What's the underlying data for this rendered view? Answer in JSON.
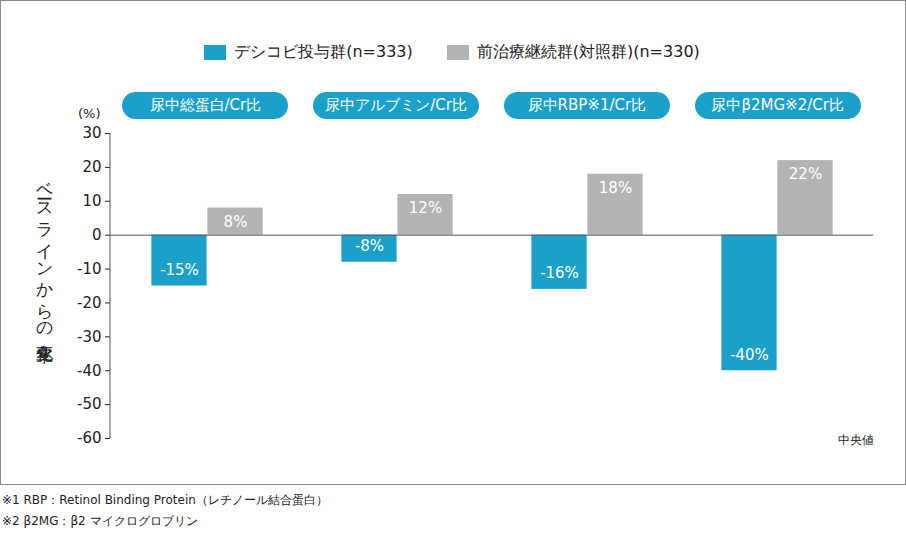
{
  "chart_data": {
    "type": "bar",
    "categories": [
      "尿中総蛋白/Cr比",
      "尿中アルブミン/Cr比",
      "尿中RBP※1/Cr比",
      "尿中β2MG※2/Cr比"
    ],
    "series": [
      {
        "name": "デシコビ投与群(n=333)",
        "color": "#1ba1c9",
        "values": [
          -15,
          -8,
          -16,
          -40
        ],
        "value_labels": [
          "-15%",
          "-8%",
          "-16%",
          "-40%"
        ]
      },
      {
        "name": "前治療継続群(対照群)(n=330)",
        "color": "#b4b4b4",
        "values": [
          8,
          12,
          18,
          22
        ],
        "value_labels": [
          "8%",
          "12%",
          "18%",
          "22%"
        ]
      }
    ],
    "y_label": "ベースラインからの変化率",
    "y_unit": "(%)",
    "ylim": [
      -60,
      30
    ],
    "yticks": [
      -60,
      -50,
      -40,
      -30,
      -20,
      -10,
      0,
      10,
      20,
      30
    ],
    "data_labels": true,
    "legend": "top",
    "grid": false,
    "tick_labels": "y",
    "note": "中央値",
    "footnotes": [
      "※1 RBP：Retinol Binding Protein（レチノール結合蛋白）",
      "※2 β2MG：β2 マイクログロブリン"
    ]
  }
}
